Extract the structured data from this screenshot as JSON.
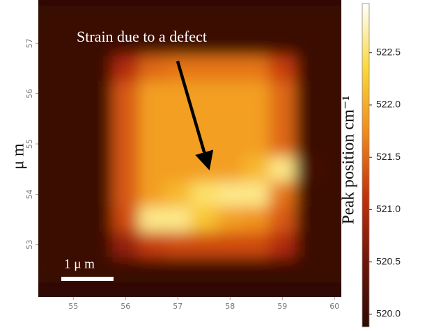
{
  "chart_data": {
    "type": "heatmap",
    "ylabel": "μ m",
    "colorbar_label": "Peak position cm⁻¹",
    "annotation": "Strain due  to a defect",
    "scalebar": {
      "label": "1 μ m",
      "length": 1
    },
    "colormap": [
      "#2e0a05",
      "#6e1608",
      "#c2300c",
      "#f08a1c",
      "#fbd83a",
      "#ffffff"
    ],
    "xlim": [
      54.33,
      60.13
    ],
    "ylim": [
      51.96,
      57.86
    ],
    "xticks": [
      55,
      56,
      57,
      58,
      59,
      60
    ],
    "yticks": [
      53,
      54,
      55,
      56,
      57
    ],
    "clim": [
      519.88,
      522.97
    ],
    "cticks": [
      {
        "value": 520,
        "label": "520.0"
      },
      520.5,
      {
        "value": 521,
        "label": "521.0"
      },
      521.5,
      {
        "value": 522,
        "label": "522.0"
      },
      522.5
    ],
    "x": [
      54.5,
      55,
      55.5,
      56,
      56.5,
      57,
      57.5,
      58,
      58.5,
      59,
      59.5,
      60
    ],
    "y": [
      57.5,
      57,
      56.5,
      56,
      55.5,
      55,
      54.5,
      54,
      53.5,
      53,
      52.5
    ],
    "z": [
      [
        520.0,
        520.0,
        520.0,
        520.0,
        520.0,
        520.0,
        520.0,
        520.0,
        520.0,
        520.0,
        520.0,
        520.0
      ],
      [
        520.0,
        520.0,
        520.0,
        520.0,
        520.0,
        520.0,
        520.0,
        520.0,
        520.0,
        520.0,
        520.0,
        520.0
      ],
      [
        520.0,
        520.0,
        520.0,
        521.0,
        521.5,
        521.6,
        521.6,
        521.6,
        521.6,
        521.2,
        520.0,
        520.0
      ],
      [
        520.0,
        520.0,
        520.0,
        521.4,
        521.9,
        521.9,
        521.9,
        521.9,
        521.9,
        521.5,
        520.0,
        520.0
      ],
      [
        520.0,
        520.0,
        520.0,
        521.4,
        521.9,
        521.9,
        521.9,
        521.9,
        521.9,
        521.5,
        520.0,
        520.0
      ],
      [
        520.0,
        520.0,
        520.0,
        521.4,
        521.9,
        521.9,
        521.9,
        521.9,
        521.9,
        521.5,
        520.0,
        520.0
      ],
      [
        520.0,
        520.0,
        520.0,
        521.4,
        521.9,
        521.9,
        521.9,
        521.9,
        522.1,
        522.6,
        520.1,
        520.0
      ],
      [
        520.0,
        520.0,
        520.0,
        521.4,
        521.9,
        522.1,
        522.5,
        522.6,
        522.6,
        521.6,
        520.0,
        520.0
      ],
      [
        520.0,
        520.0,
        520.0,
        521.3,
        522.6,
        522.6,
        522.2,
        521.9,
        521.8,
        521.4,
        520.0,
        520.0
      ],
      [
        520.0,
        520.0,
        520.0,
        520.8,
        521.2,
        521.3,
        521.3,
        521.3,
        521.3,
        521.0,
        520.0,
        520.0
      ],
      [
        520.0,
        520.0,
        520.0,
        520.0,
        520.0,
        520.0,
        520.0,
        520.0,
        520.0,
        520.0,
        520.0,
        520.0
      ]
    ]
  }
}
